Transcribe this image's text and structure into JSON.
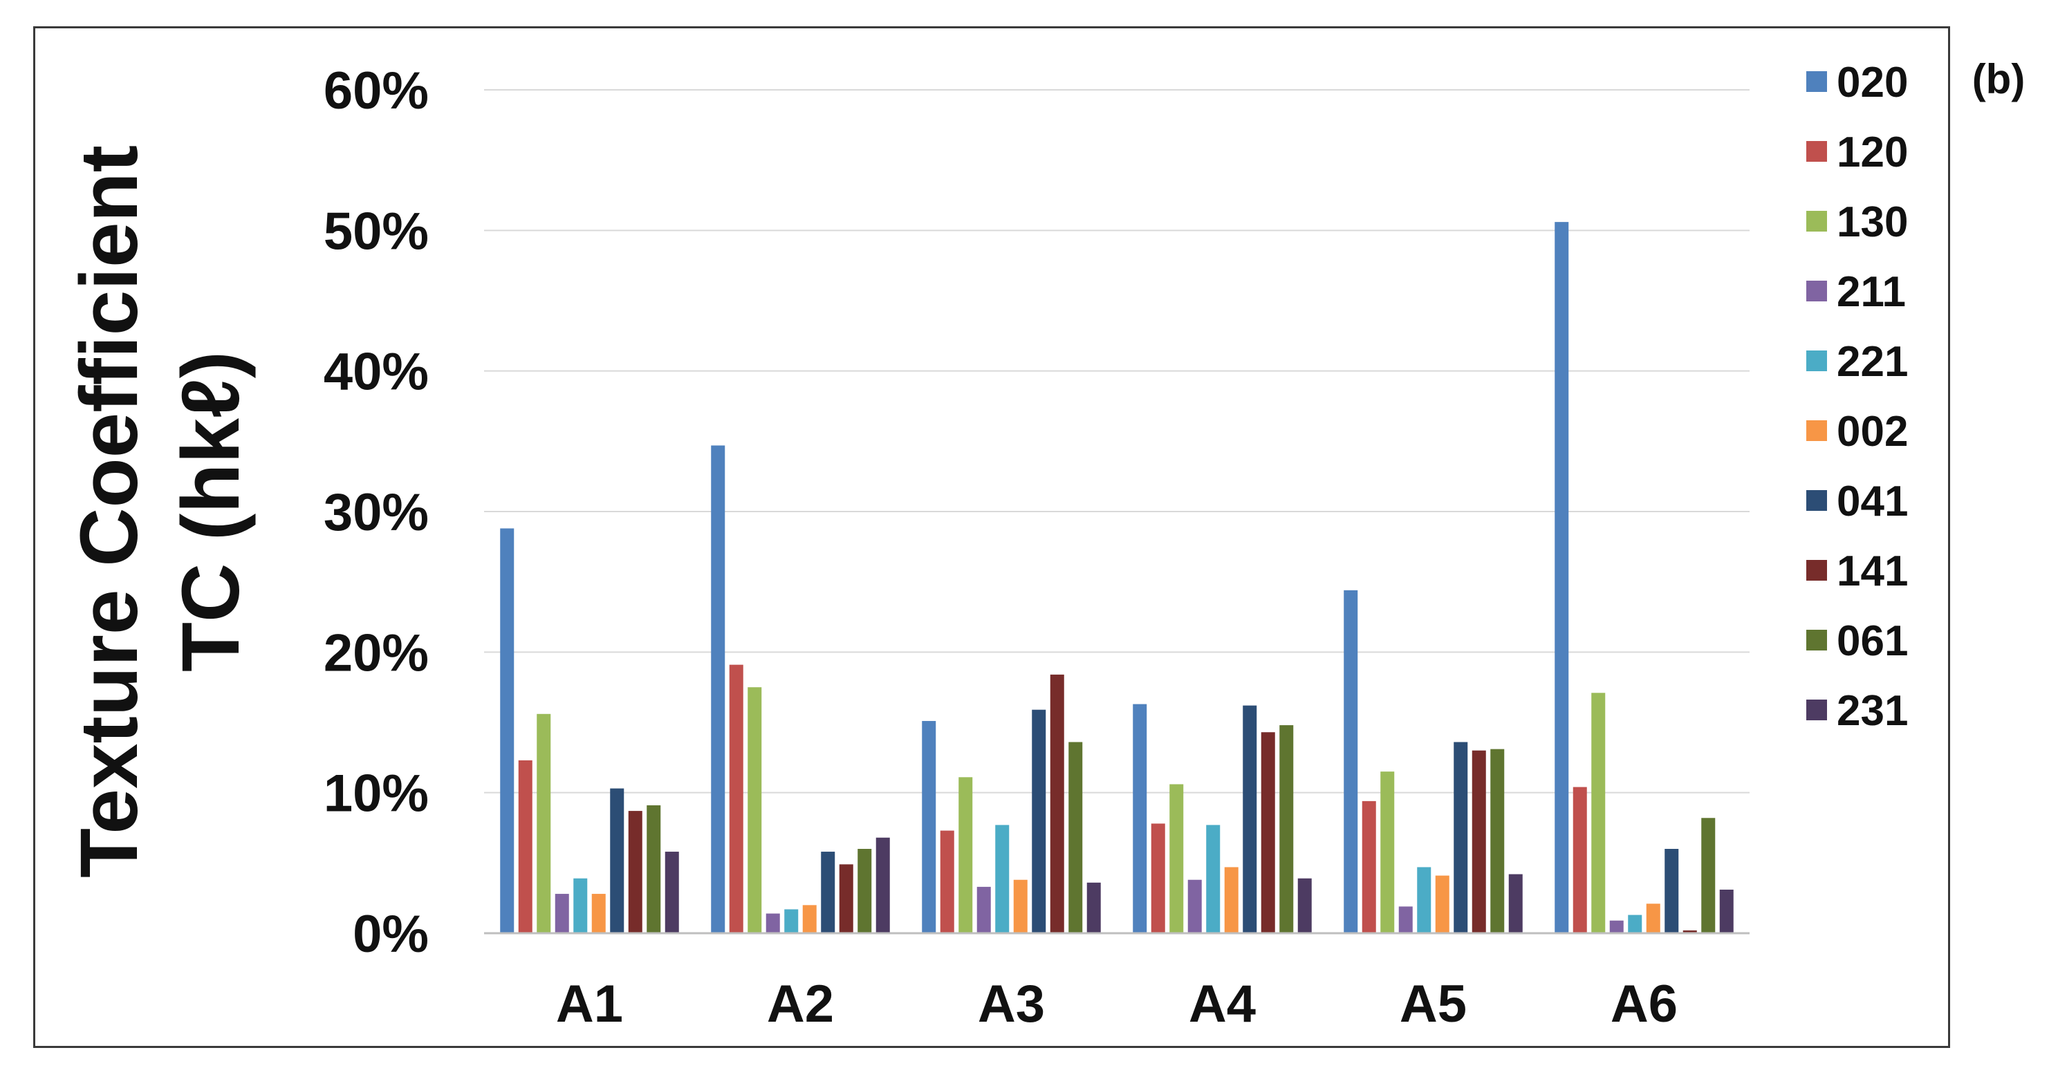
{
  "panel_label": "(b)",
  "chart_data": {
    "type": "bar",
    "title": "",
    "ylabel_lines": [
      "Texture Coefficient",
      "TC (hkℓ)"
    ],
    "xlabel": "",
    "ylim": [
      0,
      60
    ],
    "yticks": [
      0,
      10,
      20,
      30,
      40,
      50,
      60
    ],
    "ytick_labels": [
      "0%",
      "10%",
      "20%",
      "30%",
      "40%",
      "50%",
      "60%"
    ],
    "grid": true,
    "legend_position": "right",
    "categories": [
      "A1",
      "A2",
      "A3",
      "A4",
      "A5",
      "A6"
    ],
    "series": [
      {
        "name": "020",
        "color": "#4f81bd",
        "values": [
          28.8,
          34.7,
          15.1,
          16.3,
          24.4,
          50.6
        ]
      },
      {
        "name": "120",
        "color": "#c0504d",
        "values": [
          12.3,
          19.1,
          7.3,
          7.8,
          9.4,
          10.4
        ]
      },
      {
        "name": "130",
        "color": "#9bbb59",
        "values": [
          15.6,
          17.5,
          11.1,
          10.6,
          11.5,
          17.1
        ]
      },
      {
        "name": "211",
        "color": "#8064a2",
        "values": [
          2.8,
          1.4,
          3.3,
          3.8,
          1.9,
          0.9
        ]
      },
      {
        "name": "221",
        "color": "#4bacc6",
        "values": [
          3.9,
          1.7,
          7.7,
          7.7,
          4.7,
          1.3
        ]
      },
      {
        "name": "002",
        "color": "#f79646",
        "values": [
          2.8,
          2.0,
          3.8,
          4.7,
          4.1,
          2.1
        ]
      },
      {
        "name": "041",
        "color": "#2c4d75",
        "values": [
          10.3,
          5.8,
          15.9,
          16.2,
          13.6,
          6.0
        ]
      },
      {
        "name": "141",
        "color": "#772c2a",
        "values": [
          8.7,
          4.9,
          18.4,
          14.3,
          13.0,
          0.2
        ]
      },
      {
        "name": "061",
        "color": "#5f7530",
        "values": [
          9.1,
          6.0,
          13.6,
          14.8,
          13.1,
          8.2
        ]
      },
      {
        "name": "231",
        "color": "#4d3b62",
        "values": [
          5.8,
          6.8,
          3.6,
          3.9,
          4.2,
          3.1
        ]
      }
    ]
  }
}
